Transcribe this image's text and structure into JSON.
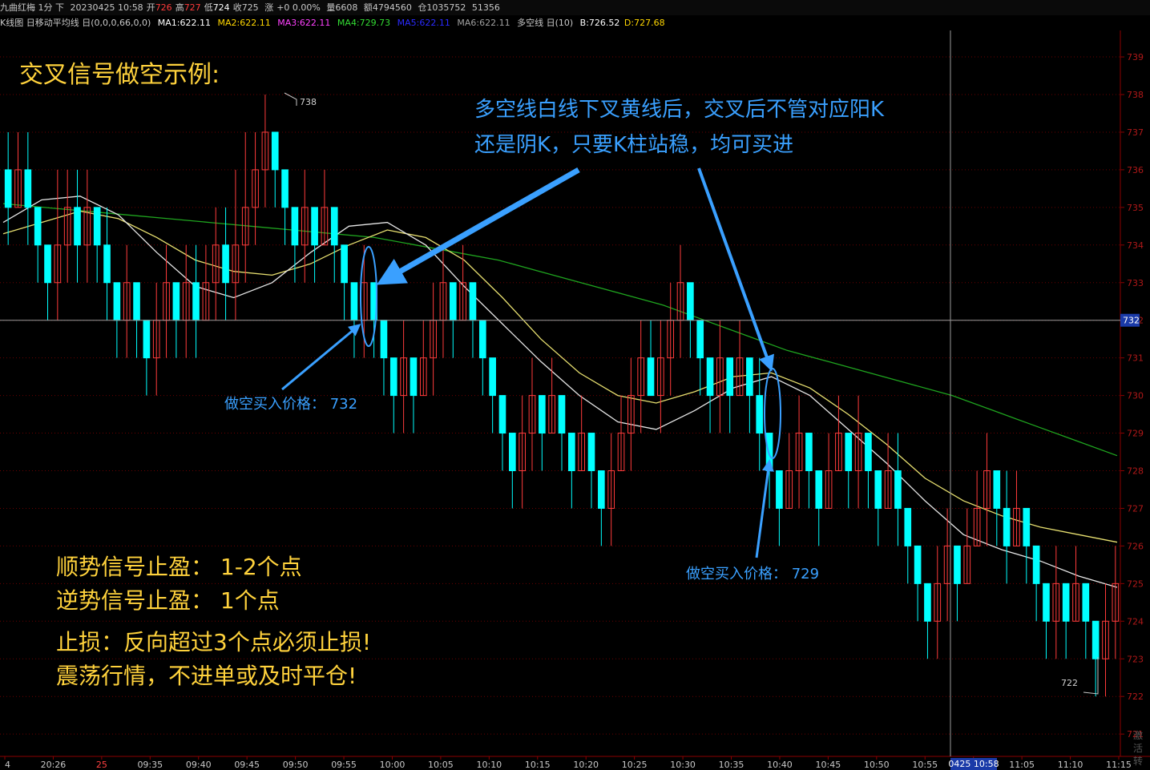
{
  "header": {
    "symbol": "九曲红梅 1分 下",
    "date": "20230425 10:58",
    "open_label": "开",
    "open": "726",
    "high_label": "高",
    "high": "727",
    "low_label": "低",
    "low": "724",
    "close_label": "收",
    "close": "725",
    "change_label": "涨",
    "change": "+0 0.00%",
    "volume_label": "量",
    "volume": "6608",
    "amount_label": "额",
    "amount": "4794560",
    "oi_label": "仓",
    "oi": "1035752",
    "extra": "51356"
  },
  "indicator_row": {
    "title": "K线图 日移动平均线 日(0,0,0,66,0,0)",
    "ma1": "MA1:622.11",
    "ma2": "MA2:622.11",
    "ma3": "MA3:622.11",
    "ma4": "MA4:729.73",
    "ma5": "MA5:622.11",
    "ma6": "MA6:622.11",
    "dk": "多空线 日(10)",
    "b": "B:726.52",
    "d": "D:727.68"
  },
  "colors": {
    "up": "#ff3b3b",
    "down": "#00ffff",
    "ma_green": "#1fa51f",
    "ma_yellow": "#e8e070",
    "ma_white": "#e6e6e6",
    "annotation_blue": "#3aa0ff",
    "annotation_yellow": "#ffd23c",
    "grid": "#6a0000",
    "axis": "#8b0000"
  },
  "annotations": {
    "title": "交叉信号做空示例:",
    "note_line1": "多空线白线下叉黄线后，交叉后不管对应阳K",
    "note_line2": "还是阴K，只要K柱站稳，均可买进",
    "entry1": "做空买入价格：  732",
    "entry2": "做空买入价格：  729",
    "rule1": "顺势信号止盈：  1-2个点",
    "rule2": "逆势信号止盈：  1个点",
    "rule3": "止损：反向超过3个点必须止损!",
    "rule4": "震荡行情，不进单或及时平仓!",
    "high_mark": "738",
    "low_mark": "722",
    "watermark": "激活 转"
  },
  "chart_data": {
    "type": "candlestick",
    "yticks": [
      "739",
      "738",
      "737",
      "736",
      "735",
      "734",
      "733",
      "732",
      "731",
      "730",
      "729",
      "728",
      "727",
      "726",
      "725",
      "724",
      "723",
      "722",
      "721"
    ],
    "crosshair_price": "732",
    "cursor_time": "0425 10:58",
    "xticks": [
      "4",
      "20:26",
      "25",
      "09:35",
      "09:40",
      "09:45",
      "09:50",
      "09:55",
      "10:00",
      "10:05",
      "10:10",
      "10:15",
      "10:20",
      "10:25",
      "10:30",
      "10:35",
      "10:40",
      "10:45",
      "10:50",
      "10:55",
      "11:00",
      "11:05",
      "11:10",
      "11:15"
    ],
    "candles": [
      {
        "o": 736,
        "c": 735,
        "h": 737,
        "l": 734
      },
      {
        "o": 735,
        "c": 736,
        "h": 737,
        "l": 735
      },
      {
        "o": 736,
        "c": 735,
        "h": 737,
        "l": 734
      },
      {
        "o": 735,
        "c": 734,
        "h": 735,
        "l": 733
      },
      {
        "o": 734,
        "c": 733,
        "h": 734,
        "l": 732
      },
      {
        "o": 733,
        "c": 734,
        "h": 736,
        "l": 732
      },
      {
        "o": 734,
        "c": 735,
        "h": 736,
        "l": 733
      },
      {
        "o": 735,
        "c": 734,
        "h": 736,
        "l": 733
      },
      {
        "o": 734,
        "c": 735,
        "h": 736,
        "l": 733
      },
      {
        "o": 735,
        "c": 734,
        "h": 735,
        "l": 733
      },
      {
        "o": 734,
        "c": 733,
        "h": 735,
        "l": 732
      },
      {
        "o": 733,
        "c": 732,
        "h": 733,
        "l": 731
      },
      {
        "o": 732,
        "c": 733,
        "h": 734,
        "l": 731
      },
      {
        "o": 733,
        "c": 732,
        "h": 733,
        "l": 731
      },
      {
        "o": 732,
        "c": 731,
        "h": 732,
        "l": 730
      },
      {
        "o": 731,
        "c": 732,
        "h": 733,
        "l": 730
      },
      {
        "o": 732,
        "c": 733,
        "h": 734,
        "l": 731
      },
      {
        "o": 733,
        "c": 732,
        "h": 733,
        "l": 731
      },
      {
        "o": 732,
        "c": 733,
        "h": 734,
        "l": 731
      },
      {
        "o": 733,
        "c": 732,
        "h": 734,
        "l": 731
      },
      {
        "o": 732,
        "c": 733,
        "h": 734,
        "l": 732
      },
      {
        "o": 733,
        "c": 734,
        "h": 735,
        "l": 732
      },
      {
        "o": 734,
        "c": 733,
        "h": 735,
        "l": 732
      },
      {
        "o": 733,
        "c": 734,
        "h": 736,
        "l": 732
      },
      {
        "o": 734,
        "c": 735,
        "h": 737,
        "l": 733
      },
      {
        "o": 735,
        "c": 736,
        "h": 737,
        "l": 734
      },
      {
        "o": 736,
        "c": 737,
        "h": 738,
        "l": 735
      },
      {
        "o": 737,
        "c": 736,
        "h": 737,
        "l": 735
      },
      {
        "o": 736,
        "c": 735,
        "h": 736,
        "l": 734
      },
      {
        "o": 735,
        "c": 734,
        "h": 735,
        "l": 733
      },
      {
        "o": 734,
        "c": 735,
        "h": 736,
        "l": 733
      },
      {
        "o": 735,
        "c": 734,
        "h": 735,
        "l": 733
      },
      {
        "o": 734,
        "c": 735,
        "h": 736,
        "l": 734
      },
      {
        "o": 735,
        "c": 734,
        "h": 735,
        "l": 733
      },
      {
        "o": 734,
        "c": 733,
        "h": 734,
        "l": 732
      },
      {
        "o": 733,
        "c": 732,
        "h": 733,
        "l": 731
      },
      {
        "o": 732,
        "c": 733,
        "h": 734,
        "l": 731
      },
      {
        "o": 733,
        "c": 732,
        "h": 733,
        "l": 731
      },
      {
        "o": 732,
        "c": 731,
        "h": 732,
        "l": 730
      },
      {
        "o": 731,
        "c": 730,
        "h": 731,
        "l": 729
      },
      {
        "o": 730,
        "c": 731,
        "h": 732,
        "l": 729
      },
      {
        "o": 731,
        "c": 730,
        "h": 731,
        "l": 729
      },
      {
        "o": 730,
        "c": 731,
        "h": 732,
        "l": 730
      },
      {
        "o": 731,
        "c": 732,
        "h": 733,
        "l": 730
      },
      {
        "o": 732,
        "c": 733,
        "h": 734,
        "l": 731
      },
      {
        "o": 733,
        "c": 732,
        "h": 733,
        "l": 731
      },
      {
        "o": 732,
        "c": 733,
        "h": 734,
        "l": 732
      },
      {
        "o": 733,
        "c": 732,
        "h": 733,
        "l": 731
      },
      {
        "o": 732,
        "c": 731,
        "h": 732,
        "l": 730
      },
      {
        "o": 731,
        "c": 730,
        "h": 731,
        "l": 729
      },
      {
        "o": 730,
        "c": 729,
        "h": 730,
        "l": 728
      },
      {
        "o": 729,
        "c": 728,
        "h": 729,
        "l": 727
      },
      {
        "o": 728,
        "c": 729,
        "h": 730,
        "l": 727
      },
      {
        "o": 729,
        "c": 730,
        "h": 731,
        "l": 728
      },
      {
        "o": 730,
        "c": 729,
        "h": 730,
        "l": 728
      },
      {
        "o": 729,
        "c": 730,
        "h": 731,
        "l": 729
      },
      {
        "o": 730,
        "c": 729,
        "h": 730,
        "l": 728
      },
      {
        "o": 729,
        "c": 728,
        "h": 729,
        "l": 727
      },
      {
        "o": 728,
        "c": 729,
        "h": 730,
        "l": 728
      },
      {
        "o": 729,
        "c": 728,
        "h": 729,
        "l": 727
      },
      {
        "o": 728,
        "c": 727,
        "h": 728,
        "l": 726
      },
      {
        "o": 727,
        "c": 728,
        "h": 729,
        "l": 726
      },
      {
        "o": 728,
        "c": 729,
        "h": 730,
        "l": 728
      },
      {
        "o": 729,
        "c": 730,
        "h": 731,
        "l": 728
      },
      {
        "o": 730,
        "c": 731,
        "h": 732,
        "l": 729
      },
      {
        "o": 731,
        "c": 730,
        "h": 732,
        "l": 730
      },
      {
        "o": 730,
        "c": 731,
        "h": 732,
        "l": 729
      },
      {
        "o": 731,
        "c": 732,
        "h": 733,
        "l": 730
      },
      {
        "o": 732,
        "c": 733,
        "h": 734,
        "l": 731
      },
      {
        "o": 733,
        "c": 732,
        "h": 733,
        "l": 731
      },
      {
        "o": 732,
        "c": 731,
        "h": 732,
        "l": 730
      },
      {
        "o": 731,
        "c": 730,
        "h": 731,
        "l": 729
      },
      {
        "o": 730,
        "c": 731,
        "h": 732,
        "l": 729
      },
      {
        "o": 731,
        "c": 730,
        "h": 731,
        "l": 729
      },
      {
        "o": 730,
        "c": 731,
        "h": 732,
        "l": 730
      },
      {
        "o": 731,
        "c": 730,
        "h": 731,
        "l": 729
      },
      {
        "o": 730,
        "c": 729,
        "h": 731,
        "l": 728
      },
      {
        "o": 729,
        "c": 728,
        "h": 729,
        "l": 727
      },
      {
        "o": 728,
        "c": 727,
        "h": 728,
        "l": 726
      },
      {
        "o": 727,
        "c": 728,
        "h": 729,
        "l": 727
      },
      {
        "o": 728,
        "c": 729,
        "h": 730,
        "l": 727
      },
      {
        "o": 729,
        "c": 728,
        "h": 729,
        "l": 727
      },
      {
        "o": 728,
        "c": 727,
        "h": 728,
        "l": 726
      },
      {
        "o": 727,
        "c": 728,
        "h": 729,
        "l": 727
      },
      {
        "o": 728,
        "c": 729,
        "h": 730,
        "l": 728
      },
      {
        "o": 729,
        "c": 728,
        "h": 729,
        "l": 727
      },
      {
        "o": 728,
        "c": 729,
        "h": 730,
        "l": 727
      },
      {
        "o": 729,
        "c": 728,
        "h": 729,
        "l": 727
      },
      {
        "o": 728,
        "c": 727,
        "h": 728,
        "l": 726
      },
      {
        "o": 727,
        "c": 728,
        "h": 729,
        "l": 727
      },
      {
        "o": 728,
        "c": 727,
        "h": 729,
        "l": 726
      },
      {
        "o": 727,
        "c": 726,
        "h": 727,
        "l": 725
      },
      {
        "o": 726,
        "c": 725,
        "h": 726,
        "l": 724
      },
      {
        "o": 725,
        "c": 724,
        "h": 725,
        "l": 723
      },
      {
        "o": 724,
        "c": 725,
        "h": 726,
        "l": 723
      },
      {
        "o": 725,
        "c": 726,
        "h": 727,
        "l": 724
      },
      {
        "o": 726,
        "c": 725,
        "h": 726,
        "l": 724
      },
      {
        "o": 725,
        "c": 726,
        "h": 727,
        "l": 725
      },
      {
        "o": 726,
        "c": 727,
        "h": 728,
        "l": 726
      },
      {
        "o": 727,
        "c": 728,
        "h": 729,
        "l": 726
      },
      {
        "o": 728,
        "c": 727,
        "h": 728,
        "l": 726
      },
      {
        "o": 727,
        "c": 726,
        "h": 728,
        "l": 725
      },
      {
        "o": 726,
        "c": 727,
        "h": 728,
        "l": 726
      },
      {
        "o": 727,
        "c": 726,
        "h": 727,
        "l": 725
      },
      {
        "o": 726,
        "c": 725,
        "h": 726,
        "l": 724
      },
      {
        "o": 725,
        "c": 724,
        "h": 725,
        "l": 723
      },
      {
        "o": 724,
        "c": 725,
        "h": 726,
        "l": 723
      },
      {
        "o": 725,
        "c": 724,
        "h": 725,
        "l": 723
      },
      {
        "o": 724,
        "c": 725,
        "h": 726,
        "l": 724
      },
      {
        "o": 725,
        "c": 724,
        "h": 725,
        "l": 723
      },
      {
        "o": 724,
        "c": 723,
        "h": 724,
        "l": 722
      },
      {
        "o": 723,
        "c": 724,
        "h": 725,
        "l": 722
      },
      {
        "o": 724,
        "c": 725,
        "h": 726,
        "l": 723
      }
    ],
    "ma_green": [
      735.1,
      735.0,
      734.9,
      734.8,
      734.7,
      734.6,
      734.5,
      734.4,
      734.3,
      734.2,
      734.0,
      733.8,
      733.6,
      733.3,
      733.0,
      732.7,
      732.4,
      732.0,
      731.6,
      731.2,
      730.9,
      730.6,
      730.3,
      730.0,
      729.6,
      729.2,
      728.8,
      728.4
    ],
    "ma_yellow": [
      734.3,
      734.6,
      734.9,
      734.7,
      734.2,
      733.6,
      733.3,
      733.2,
      733.5,
      734.0,
      734.4,
      734.2,
      733.6,
      732.6,
      731.5,
      730.6,
      730.0,
      729.8,
      730.1,
      730.5,
      730.6,
      730.2,
      729.5,
      728.7,
      727.8,
      727.2,
      726.8,
      726.5,
      726.3,
      726.1
    ],
    "ma_white": [
      734.6,
      735.2,
      735.3,
      734.8,
      733.8,
      732.9,
      732.6,
      733.0,
      733.8,
      734.5,
      734.6,
      734.0,
      732.9,
      731.9,
      730.9,
      730.0,
      729.3,
      729.1,
      729.6,
      730.2,
      730.5,
      730.0,
      729.1,
      728.2,
      727.2,
      726.3,
      725.9,
      725.6,
      725.2,
      724.9
    ]
  }
}
